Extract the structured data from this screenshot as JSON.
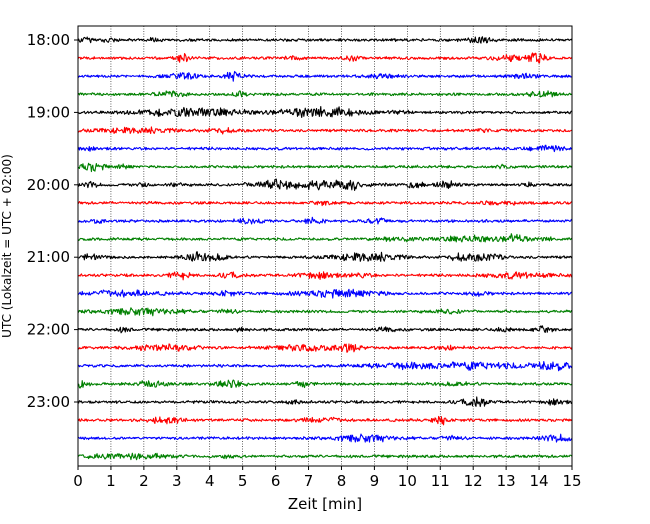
{
  "chart_data": {
    "type": "line",
    "title": "",
    "xlabel": "Zeit  [min]",
    "ylabel": "UTC (Lokalzeit = UTC + 02:00)",
    "xlim": [
      0,
      15
    ],
    "x_ticks": [
      "0",
      "1",
      "2",
      "3",
      "4",
      "5",
      "6",
      "7",
      "8",
      "9",
      "10",
      "11",
      "12",
      "13",
      "14",
      "15"
    ],
    "y_ticks": [
      {
        "label": "18:00",
        "trace_index": 0
      },
      {
        "label": "19:00",
        "trace_index": 4
      },
      {
        "label": "20:00",
        "trace_index": 8
      },
      {
        "label": "21:00",
        "trace_index": 12
      },
      {
        "label": "22:00",
        "trace_index": 16
      },
      {
        "label": "23:00",
        "trace_index": 20
      }
    ],
    "grid": "vertical",
    "colors": [
      "#000000",
      "#ff0000",
      "#0000ff",
      "#008000"
    ],
    "traces": [
      {
        "start": "18:00",
        "color": "#000000",
        "bursts": [
          [
            0.3,
            0.8,
            0.5
          ],
          [
            2.3,
            0.2,
            0.4
          ],
          [
            12.2,
            0.4,
            0.6
          ]
        ]
      },
      {
        "start": "18:15",
        "color": "#ff0000",
        "bursts": [
          [
            3.2,
            0.2,
            1.0
          ],
          [
            6.5,
            0.2,
            0.5
          ],
          [
            8.3,
            0.2,
            0.6
          ],
          [
            13.2,
            0.5,
            0.6
          ],
          [
            13.9,
            0.3,
            1.0
          ]
        ]
      },
      {
        "start": "18:30",
        "color": "#0000ff",
        "bursts": [
          [
            3.2,
            0.4,
            0.9
          ],
          [
            4.7,
            0.3,
            1.0
          ],
          [
            9.2,
            0.5,
            0.4
          ],
          [
            13.6,
            0.4,
            0.5
          ]
        ]
      },
      {
        "start": "18:45",
        "color": "#008000",
        "bursts": [
          [
            2.8,
            0.4,
            0.7
          ],
          [
            4.9,
            0.2,
            0.5
          ],
          [
            14.1,
            0.4,
            0.6
          ]
        ]
      },
      {
        "start": "19:00",
        "color": "#000000",
        "bursts": [
          [
            3.5,
            1.6,
            0.9
          ],
          [
            7.4,
            1.1,
            1.3
          ],
          [
            9.8,
            0.3,
            0.4
          ]
        ]
      },
      {
        "start": "19:15",
        "color": "#ff0000",
        "bursts": [
          [
            1.8,
            1.2,
            0.6
          ],
          [
            4.3,
            0.4,
            0.5
          ],
          [
            12.2,
            0.3,
            0.3
          ]
        ]
      },
      {
        "start": "19:30",
        "color": "#0000ff",
        "bursts": [
          [
            0.3,
            0.2,
            0.3
          ],
          [
            14.2,
            0.5,
            0.6
          ]
        ]
      },
      {
        "start": "19:45",
        "color": "#008000",
        "bursts": [
          [
            0.4,
            0.4,
            0.9
          ],
          [
            1.4,
            0.2,
            0.4
          ],
          [
            13.0,
            0.3,
            0.3
          ]
        ]
      },
      {
        "start": "20:00",
        "color": "#000000",
        "bursts": [
          [
            0.4,
            0.2,
            0.6
          ],
          [
            2.0,
            0.2,
            0.4
          ],
          [
            3.0,
            0.2,
            0.4
          ],
          [
            5.8,
            0.6,
            0.7
          ],
          [
            7.2,
            1.3,
            1.0
          ],
          [
            8.3,
            0.2,
            0.8
          ],
          [
            10.2,
            0.3,
            0.5
          ],
          [
            11.2,
            0.3,
            0.7
          ],
          [
            13.6,
            0.2,
            0.4
          ]
        ]
      },
      {
        "start": "20:15",
        "color": "#ff0000",
        "bursts": [
          [
            7.5,
            0.3,
            0.4
          ],
          [
            12.8,
            0.5,
            0.4
          ]
        ]
      },
      {
        "start": "20:30",
        "color": "#0000ff",
        "bursts": [
          [
            0.6,
            0.2,
            0.4
          ],
          [
            5.2,
            0.5,
            0.5
          ],
          [
            7.1,
            0.3,
            0.8
          ],
          [
            9.1,
            0.3,
            0.6
          ]
        ]
      },
      {
        "start": "20:45",
        "color": "#008000",
        "bursts": [
          [
            9.7,
            0.6,
            0.4
          ],
          [
            12.0,
            1.0,
            0.6
          ],
          [
            13.3,
            0.3,
            1.0
          ],
          [
            14.2,
            0.3,
            0.4
          ]
        ]
      },
      {
        "start": "21:00",
        "color": "#000000",
        "bursts": [
          [
            0.4,
            0.3,
            0.7
          ],
          [
            3.6,
            0.4,
            1.0
          ],
          [
            4.3,
            0.3,
            0.7
          ],
          [
            8.8,
            1.0,
            1.0
          ],
          [
            11.6,
            0.4,
            0.6
          ],
          [
            12.4,
            0.5,
            0.7
          ]
        ]
      },
      {
        "start": "21:15",
        "color": "#ff0000",
        "bursts": [
          [
            3.1,
            0.3,
            0.8
          ],
          [
            4.6,
            0.3,
            0.6
          ],
          [
            7.3,
            0.6,
            0.6
          ],
          [
            8.6,
            0.3,
            0.5
          ],
          [
            13.4,
            1.0,
            0.6
          ]
        ]
      },
      {
        "start": "21:30",
        "color": "#0000ff",
        "bursts": [
          [
            1.3,
            1.1,
            0.6
          ],
          [
            4.5,
            0.3,
            0.5
          ],
          [
            8.0,
            1.3,
            0.8
          ],
          [
            12.2,
            0.3,
            0.4
          ]
        ]
      },
      {
        "start": "21:45",
        "color": "#008000",
        "bursts": [
          [
            1.8,
            1.3,
            0.7
          ],
          [
            4.5,
            0.3,
            0.4
          ],
          [
            11.3,
            0.5,
            0.4
          ]
        ]
      },
      {
        "start": "22:00",
        "color": "#000000",
        "bursts": [
          [
            1.4,
            0.2,
            0.5
          ],
          [
            5.0,
            0.2,
            0.4
          ],
          [
            9.4,
            0.3,
            0.4
          ],
          [
            13.0,
            0.3,
            0.4
          ],
          [
            14.1,
            0.3,
            0.6
          ]
        ]
      },
      {
        "start": "22:15",
        "color": "#ff0000",
        "bursts": [
          [
            2.6,
            0.9,
            0.6
          ],
          [
            7.0,
            1.0,
            0.6
          ],
          [
            8.2,
            0.3,
            0.9
          ],
          [
            11.3,
            0.4,
            0.4
          ]
        ]
      },
      {
        "start": "22:30",
        "color": "#0000ff",
        "bursts": [
          [
            10.0,
            1.2,
            0.6
          ],
          [
            12.2,
            1.3,
            0.7
          ],
          [
            14.4,
            0.6,
            1.0
          ]
        ]
      },
      {
        "start": "22:45",
        "color": "#008000",
        "bursts": [
          [
            0.1,
            0.2,
            1.0
          ],
          [
            2.2,
            0.5,
            0.6
          ],
          [
            4.6,
            0.4,
            0.9
          ],
          [
            6.8,
            0.3,
            0.6
          ],
          [
            11.5,
            0.5,
            0.4
          ]
        ]
      },
      {
        "start": "23:00",
        "color": "#000000",
        "bursts": [
          [
            6.5,
            0.3,
            0.3
          ],
          [
            11.8,
            0.4,
            0.4
          ],
          [
            12.2,
            0.3,
            0.7
          ],
          [
            14.5,
            0.3,
            0.5
          ]
        ]
      },
      {
        "start": "23:15",
        "color": "#ff0000",
        "bursts": [
          [
            2.6,
            0.6,
            0.6
          ],
          [
            7.4,
            0.6,
            0.5
          ],
          [
            11.0,
            0.2,
            1.0
          ]
        ]
      },
      {
        "start": "23:30",
        "color": "#0000ff",
        "bursts": [
          [
            8.6,
            0.9,
            0.8
          ],
          [
            11.3,
            0.3,
            0.5
          ],
          [
            14.6,
            0.5,
            0.7
          ]
        ]
      },
      {
        "start": "23:45",
        "color": "#008000",
        "bursts": [
          [
            1.5,
            1.3,
            0.6
          ],
          [
            4.5,
            0.2,
            0.6
          ]
        ]
      }
    ]
  }
}
